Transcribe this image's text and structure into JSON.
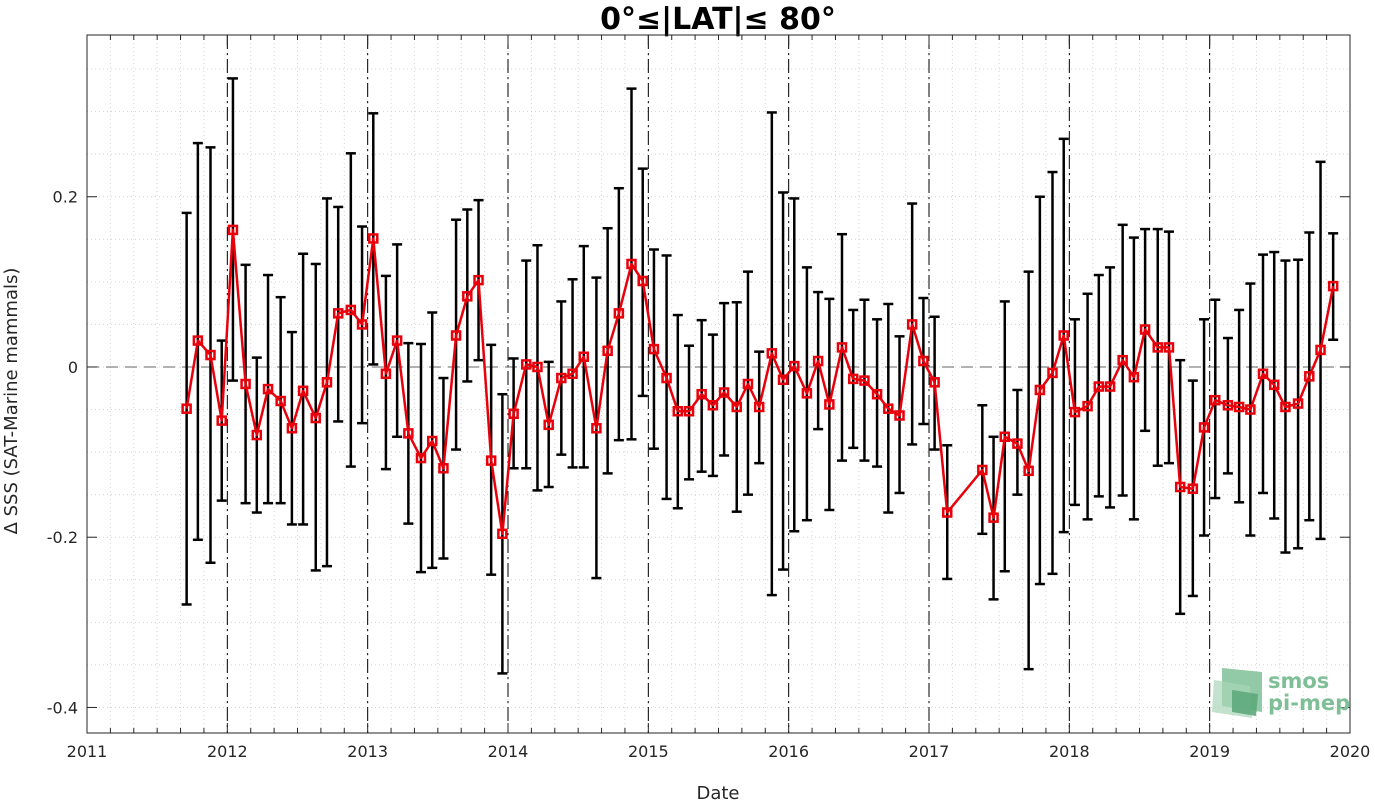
{
  "chart_data": {
    "type": "line",
    "title": "0°≤|LAT|≤ 80°",
    "xlabel": "Date",
    "ylabel": "Δ SSS (SAT-Marine mammals)",
    "xlim": [
      2011,
      2020
    ],
    "ylim": [
      -0.43,
      0.39
    ],
    "x_ticks": [
      "2011",
      "2012",
      "2013",
      "2014",
      "2015",
      "2016",
      "2017",
      "2018",
      "2019",
      "2020"
    ],
    "y_ticks": [
      {
        "value": 0.2,
        "label": "0.2"
      },
      {
        "value": 0,
        "label": "0"
      },
      {
        "value": -0.2,
        "label": "-0.2"
      },
      {
        "value": -0.4,
        "label": "-0.4"
      }
    ],
    "grid": true,
    "zero_line": true,
    "year_lines": true,
    "series": [
      {
        "color": "#e8000b",
        "errorbar_color": "#000000",
        "marker": "square",
        "x": [
          2011.71,
          2011.79,
          2011.88,
          2011.96,
          2012.04,
          2012.13,
          2012.21,
          2012.29,
          2012.38,
          2012.46,
          2012.54,
          2012.63,
          2012.71,
          2012.79,
          2012.88,
          2012.96,
          2013.04,
          2013.13,
          2013.21,
          2013.29,
          2013.38,
          2013.46,
          2013.54,
          2013.63,
          2013.71,
          2013.79,
          2013.88,
          2013.96,
          2014.04,
          2014.13,
          2014.21,
          2014.29,
          2014.38,
          2014.46,
          2014.54,
          2014.63,
          2014.71,
          2014.79,
          2014.88,
          2014.96,
          2015.04,
          2015.13,
          2015.21,
          2015.29,
          2015.38,
          2015.46,
          2015.54,
          2015.63,
          2015.71,
          2015.79,
          2015.88,
          2015.96,
          2016.04,
          2016.13,
          2016.21,
          2016.29,
          2016.38,
          2016.46,
          2016.54,
          2016.63,
          2016.71,
          2016.79,
          2016.88,
          2016.96,
          2017.04,
          2017.13,
          2017.38,
          2017.46,
          2017.54,
          2017.63,
          2017.71,
          2017.79,
          2017.88,
          2017.96,
          2018.04,
          2018.13,
          2018.21,
          2018.29,
          2018.38,
          2018.46,
          2018.54,
          2018.63,
          2018.71,
          2018.79,
          2018.88,
          2018.96,
          2019.04,
          2019.13,
          2019.21,
          2019.29,
          2019.38,
          2019.46,
          2019.54,
          2019.63,
          2019.71,
          2019.79,
          2019.88
        ],
        "y": [
          -0.049,
          0.031,
          0.014,
          -0.063,
          0.161,
          -0.02,
          -0.08,
          -0.026,
          -0.04,
          -0.072,
          -0.028,
          -0.06,
          -0.018,
          0.063,
          0.067,
          0.05,
          0.151,
          -0.008,
          0.031,
          -0.078,
          -0.107,
          -0.087,
          -0.119,
          0.037,
          0.083,
          0.102,
          -0.11,
          -0.196,
          -0.055,
          0.003,
          0.0,
          -0.068,
          -0.013,
          -0.008,
          0.012,
          -0.072,
          0.019,
          0.063,
          0.121,
          0.101,
          0.021,
          -0.013,
          -0.052,
          -0.052,
          -0.032,
          -0.045,
          -0.03,
          -0.047,
          -0.02,
          -0.047,
          0.016,
          -0.015,
          0.001,
          -0.031,
          0.007,
          -0.044,
          0.023,
          -0.014,
          -0.016,
          -0.032,
          -0.049,
          -0.057,
          0.05,
          0.007,
          -0.018,
          -0.171,
          -0.121,
          -0.177,
          -0.082,
          -0.09,
          -0.122,
          -0.027,
          -0.007,
          0.037,
          -0.053,
          -0.046,
          -0.023,
          -0.023,
          0.008,
          -0.012,
          0.044,
          0.023,
          0.023,
          -0.141,
          -0.143,
          -0.071,
          -0.039,
          -0.045,
          -0.047,
          -0.05,
          -0.008,
          -0.021,
          -0.047,
          -0.043,
          -0.011,
          0.02,
          0.095
        ],
        "y_low": [
          -0.279,
          -0.203,
          -0.23,
          -0.157,
          -0.016,
          -0.16,
          -0.171,
          -0.16,
          -0.16,
          -0.185,
          -0.185,
          -0.239,
          -0.234,
          -0.064,
          -0.117,
          -0.066,
          0.003,
          -0.12,
          -0.082,
          -0.184,
          -0.241,
          -0.236,
          -0.225,
          -0.097,
          -0.017,
          0.008,
          -0.244,
          -0.36,
          -0.119,
          -0.119,
          -0.145,
          -0.141,
          -0.103,
          -0.118,
          -0.118,
          -0.248,
          -0.125,
          -0.086,
          -0.085,
          -0.034,
          -0.096,
          -0.155,
          -0.166,
          -0.132,
          -0.123,
          -0.128,
          -0.104,
          -0.17,
          -0.15,
          -0.113,
          -0.268,
          -0.238,
          -0.193,
          -0.18,
          -0.073,
          -0.168,
          -0.11,
          -0.095,
          -0.11,
          -0.117,
          -0.171,
          -0.148,
          -0.091,
          -0.067,
          -0.097,
          -0.249,
          -0.196,
          -0.273,
          -0.24,
          -0.15,
          -0.355,
          -0.255,
          -0.243,
          -0.194,
          -0.162,
          -0.179,
          -0.152,
          -0.165,
          -0.151,
          -0.179,
          -0.075,
          -0.116,
          -0.113,
          -0.29,
          -0.269,
          -0.198,
          -0.154,
          -0.125,
          -0.159,
          -0.198,
          -0.148,
          -0.178,
          -0.218,
          -0.213,
          -0.18,
          -0.202,
          0.032
        ],
        "y_high": [
          0.181,
          0.263,
          0.258,
          0.031,
          0.339,
          0.12,
          0.011,
          0.108,
          0.082,
          0.041,
          0.133,
          0.121,
          0.198,
          0.188,
          0.251,
          0.165,
          0.298,
          0.107,
          0.144,
          0.028,
          0.027,
          0.064,
          -0.013,
          0.173,
          0.185,
          0.196,
          0.026,
          -0.032,
          0.01,
          0.125,
          0.143,
          0.006,
          0.077,
          0.103,
          0.142,
          0.105,
          0.163,
          0.21,
          0.327,
          0.233,
          0.138,
          0.131,
          0.061,
          0.025,
          0.055,
          0.038,
          0.075,
          0.076,
          0.112,
          0.018,
          0.299,
          0.205,
          0.198,
          0.117,
          0.088,
          0.08,
          0.156,
          0.067,
          0.079,
          0.056,
          0.074,
          0.036,
          0.192,
          0.081,
          0.059,
          -0.092,
          -0.045,
          -0.082,
          0.077,
          -0.027,
          0.112,
          0.2,
          0.229,
          0.268,
          0.056,
          0.086,
          0.108,
          0.117,
          0.167,
          0.152,
          0.162,
          0.162,
          0.159,
          0.008,
          -0.016,
          0.056,
          0.079,
          0.034,
          0.067,
          0.098,
          0.132,
          0.135,
          0.125,
          0.126,
          0.158,
          0.241,
          0.157
        ]
      }
    ]
  },
  "logo": {
    "line1": "smos",
    "line2": "pi-mep",
    "colors": [
      "#7fbf97",
      "#a8d5b8",
      "#5ea87c"
    ]
  }
}
